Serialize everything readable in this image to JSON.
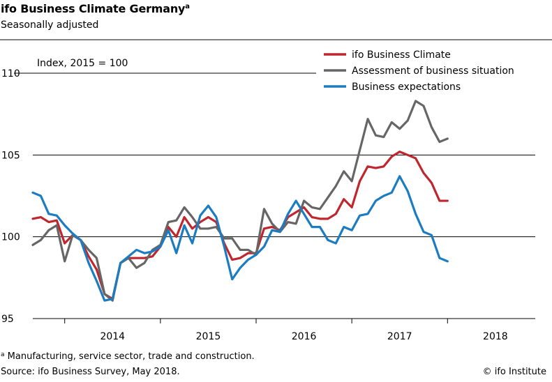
{
  "header": {
    "title": "ifo Business Climate Germany",
    "title_sup": "a",
    "subtitle": "Seasonally adjusted"
  },
  "footer": {
    "footnote_sup": "a",
    "footnote": "Manufacturing, service sector, trade and construction.",
    "source": "Source: ifo Business Survey, May 2018.",
    "copyright": "© ifo Institute"
  },
  "chart_data": {
    "type": "line",
    "annotation": "Index, 2015 = 100",
    "x_start": "2013-09",
    "x_end": "2018-12",
    "years": [
      "2014",
      "2015",
      "2016",
      "2017",
      "2018"
    ],
    "ylim": [
      95,
      110
    ],
    "yticks": [
      95,
      100,
      105,
      110
    ],
    "grid": true,
    "legend_position": "top-right",
    "series": [
      {
        "name": "ifo Business Climate",
        "color": "#c0262d",
        "start": "2013-09",
        "values": [
          101.1,
          101.2,
          100.9,
          101.0,
          99.6,
          100.1,
          99.8,
          98.8,
          98.0,
          96.5,
          96.2,
          98.4,
          98.7,
          98.7,
          98.7,
          98.8,
          99.4,
          100.6,
          100.0,
          101.2,
          100.5,
          100.9,
          101.2,
          100.9,
          99.6,
          98.6,
          98.7,
          99.0,
          99.0,
          100.5,
          100.6,
          100.4,
          101.2,
          101.5,
          101.8,
          101.2,
          101.1,
          101.1,
          101.4,
          102.3,
          101.8,
          103.4,
          104.3,
          104.2,
          104.3,
          104.9,
          105.2,
          105.0,
          104.8,
          103.9,
          103.3,
          102.2,
          102.2
        ]
      },
      {
        "name": "Assessment of business situation",
        "color": "#666666",
        "start": "2013-09",
        "values": [
          99.5,
          99.8,
          100.4,
          100.7,
          98.5,
          100.1,
          99.8,
          99.2,
          98.7,
          96.5,
          96.1,
          98.4,
          98.7,
          98.1,
          98.4,
          99.2,
          99.5,
          100.9,
          101.0,
          101.8,
          101.2,
          100.5,
          100.5,
          100.6,
          99.9,
          99.9,
          99.2,
          99.2,
          98.9,
          101.7,
          100.8,
          100.3,
          100.9,
          100.8,
          102.2,
          101.8,
          101.7,
          102.4,
          103.1,
          104.0,
          103.4,
          105.3,
          107.2,
          106.2,
          106.1,
          107.0,
          106.6,
          107.1,
          108.3,
          108.0,
          106.7,
          105.8,
          106.0
        ]
      },
      {
        "name": "Business expectations",
        "color": "#1b7cc1",
        "start": "2013-09",
        "values": [
          102.7,
          102.5,
          101.4,
          101.3,
          100.7,
          100.2,
          99.8,
          98.4,
          97.3,
          96.1,
          96.2,
          98.4,
          98.8,
          99.2,
          99.0,
          99.1,
          99.4,
          100.4,
          99.0,
          100.7,
          99.6,
          101.3,
          101.9,
          101.2,
          99.4,
          97.4,
          98.1,
          98.6,
          98.9,
          99.4,
          100.4,
          100.3,
          101.4,
          102.2,
          101.4,
          100.6,
          100.6,
          99.8,
          99.6,
          100.6,
          100.4,
          101.3,
          101.4,
          102.2,
          102.5,
          102.7,
          103.7,
          102.8,
          101.4,
          100.3,
          100.1,
          98.7,
          98.5
        ]
      }
    ]
  }
}
